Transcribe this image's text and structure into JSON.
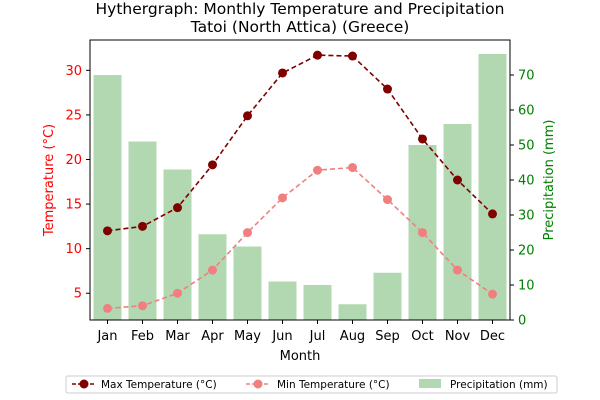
{
  "chart_data": {
    "type": "bar",
    "title_line1": "Hythergraph: Monthly Temperature and Precipitation",
    "title_line2": "Tatoi (North Attica) (Greece)",
    "xlabel": "Month",
    "ylabel_left": "Temperature (°C)",
    "ylabel_right": "Precipitation (mm)",
    "categories": [
      "Jan",
      "Feb",
      "Mar",
      "Apr",
      "May",
      "Jun",
      "Jul",
      "Aug",
      "Sep",
      "Oct",
      "Nov",
      "Dec"
    ],
    "ylim_left": [
      2,
      33.4
    ],
    "ylim_right": [
      0,
      80
    ],
    "left_ticks": [
      5,
      10,
      15,
      20,
      25,
      30
    ],
    "right_ticks": [
      0,
      10,
      20,
      30,
      40,
      50,
      60,
      70
    ],
    "series": [
      {
        "name": "Max Temperature (°C)",
        "kind": "line",
        "axis": "left",
        "color": "#800000",
        "values": [
          12.0,
          12.5,
          14.6,
          19.4,
          24.9,
          29.7,
          31.7,
          31.6,
          27.9,
          22.3,
          17.7,
          13.9
        ]
      },
      {
        "name": "Min Temperature (°C)",
        "kind": "line",
        "axis": "left",
        "color": "#f08080",
        "values": [
          3.3,
          3.6,
          5.0,
          7.6,
          11.8,
          15.7,
          18.8,
          19.1,
          15.5,
          11.8,
          7.6,
          4.9
        ]
      },
      {
        "name": "Precipitation (mm)",
        "kind": "bar",
        "axis": "right",
        "color": "#b2d8b2",
        "values": [
          70,
          51,
          43,
          24.5,
          21,
          11,
          10,
          4.5,
          13.5,
          50,
          56,
          76
        ]
      }
    ],
    "colors": {
      "left_axis": "#ff0000",
      "right_axis": "#008000"
    },
    "legend": "bottom-center"
  }
}
